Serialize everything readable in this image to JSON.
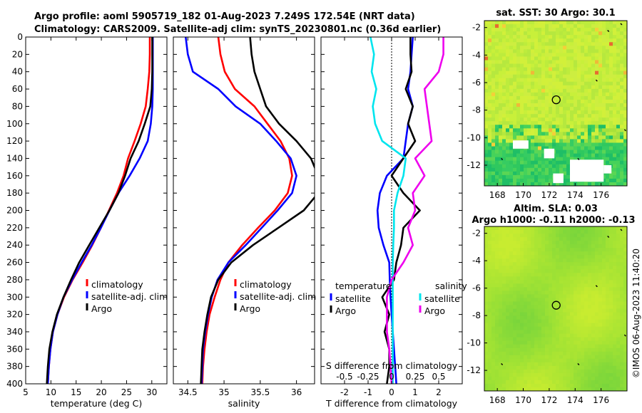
{
  "colors": {
    "climatology": "#ff0000",
    "satellite": "#0000ff",
    "argo": "#000000",
    "sat_salinity": "#00e5ee",
    "argo_salinity": "#ee00ee"
  },
  "header": {
    "line1": "Argo profile: aoml 5905719_182 01-Aug-2023 7.249S 172.54E (NRT data)",
    "line2": "Climatology: CARS2009. Satellite-adj clim: synTS_20230801.nc (0.36d earlier)"
  },
  "side_label": "©IMOS 06-Aug-2023 11:40:20",
  "chart_data": [
    {
      "type": "line",
      "id": "temperature",
      "xlabel": "temperature (deg C)",
      "xlim": [
        5,
        33
      ],
      "ylim": [
        0,
        400
      ],
      "xticks": [
        5,
        10,
        15,
        20,
        25,
        30
      ],
      "yticks": [
        0,
        20,
        40,
        60,
        80,
        100,
        120,
        140,
        160,
        180,
        200,
        220,
        240,
        260,
        280,
        300,
        320,
        340,
        360,
        380,
        400
      ],
      "legend": [
        "climatology",
        "satellite-adj. clim",
        "Argo"
      ],
      "series": [
        {
          "name": "climatology",
          "color": "#ff0000",
          "x": [
            29.6,
            29.6,
            29.5,
            29.2,
            28.8,
            27.8,
            26.6,
            25.3,
            24.4,
            23.1,
            21.5,
            19.9,
            18.2,
            16.3,
            14.3,
            12.6,
            11.3,
            10.4,
            9.9,
            9.6,
            9.4
          ],
          "y": [
            0,
            20,
            40,
            60,
            80,
            100,
            120,
            140,
            160,
            180,
            200,
            220,
            240,
            260,
            280,
            300,
            320,
            340,
            360,
            380,
            400
          ]
        },
        {
          "name": "satellite",
          "color": "#0000ff",
          "x": [
            30.2,
            30.2,
            30.2,
            30.2,
            30.1,
            29.8,
            29.2,
            27.6,
            25.6,
            23.4,
            21.6,
            19.9,
            18.1,
            16.1,
            14.2,
            12.5,
            11.3,
            10.4,
            9.9,
            9.6,
            9.4
          ],
          "y": [
            0,
            20,
            40,
            60,
            80,
            100,
            120,
            140,
            160,
            180,
            200,
            220,
            240,
            260,
            280,
            300,
            320,
            340,
            360,
            380,
            400
          ]
        },
        {
          "name": "Argo",
          "color": "#000000",
          "x": [
            30.1,
            30.1,
            30.1,
            30.0,
            29.7,
            28.6,
            27.4,
            25.8,
            24.7,
            23.4,
            21.6,
            19.6,
            17.6,
            15.6,
            14.0,
            12.5,
            11.2,
            10.3,
            9.7,
            9.4,
            9.2
          ],
          "y": [
            0,
            20,
            40,
            60,
            80,
            100,
            120,
            140,
            160,
            180,
            200,
            220,
            240,
            260,
            280,
            300,
            320,
            340,
            360,
            380,
            400
          ]
        }
      ]
    },
    {
      "type": "line",
      "id": "salinity",
      "xlabel": "salinity",
      "xlim": [
        34.3,
        36.25
      ],
      "ylim": [
        0,
        400
      ],
      "xticks": [
        34.5,
        35,
        35.5,
        36
      ],
      "legend": [
        "climatology",
        "satellite-adj. clim",
        "Argo"
      ],
      "series": [
        {
          "name": "climatology",
          "color": "#ff0000",
          "x": [
            34.92,
            34.95,
            35.01,
            35.15,
            35.42,
            35.6,
            35.78,
            35.9,
            35.94,
            35.88,
            35.7,
            35.47,
            35.25,
            35.06,
            34.95,
            34.87,
            34.8,
            34.76,
            34.73,
            34.71,
            34.7
          ],
          "y": [
            0,
            20,
            40,
            60,
            80,
            100,
            120,
            140,
            160,
            180,
            200,
            220,
            240,
            260,
            280,
            300,
            320,
            340,
            360,
            380,
            400
          ]
        },
        {
          "name": "satellite",
          "color": "#0000ff",
          "x": [
            34.47,
            34.5,
            34.57,
            34.92,
            35.16,
            35.5,
            35.72,
            35.92,
            36.0,
            35.94,
            35.74,
            35.52,
            35.3,
            35.06,
            34.91,
            34.83,
            34.78,
            34.74,
            34.71,
            34.7,
            34.69
          ],
          "y": [
            0,
            20,
            40,
            60,
            80,
            100,
            120,
            140,
            160,
            180,
            200,
            220,
            240,
            260,
            280,
            300,
            320,
            340,
            360,
            380,
            400
          ]
        },
        {
          "name": "Argo",
          "color": "#000000",
          "x": [
            35.36,
            35.38,
            35.42,
            35.5,
            35.58,
            35.76,
            36.0,
            36.2,
            36.3,
            36.3,
            36.1,
            35.75,
            35.4,
            35.1,
            34.92,
            34.82,
            34.77,
            34.73,
            34.7,
            34.69,
            34.68
          ],
          "y": [
            0,
            20,
            40,
            60,
            80,
            100,
            120,
            140,
            160,
            180,
            200,
            220,
            240,
            260,
            280,
            300,
            320,
            340,
            360,
            380,
            400
          ]
        }
      ]
    },
    {
      "type": "line",
      "id": "differences",
      "xlabel": "T difference from climatology",
      "top_axis_label": "S difference from climatology",
      "xlim": [
        -3,
        3
      ],
      "ylim": [
        0,
        400
      ],
      "xticks": [
        -2,
        -1,
        0,
        1,
        2
      ],
      "top_ticks": [
        -0.5,
        -0.25,
        0,
        0.25,
        0.5
      ],
      "legend_groups": [
        {
          "title": "temperature",
          "items": [
            "satellite",
            "Argo"
          ]
        },
        {
          "title": "salinity",
          "items": [
            "satellite",
            "Argo"
          ]
        }
      ],
      "series": [
        {
          "name": "temperature satellite",
          "color": "#0000ff",
          "x": [
            0.9,
            0.85,
            0.8,
            0.7,
            0.9,
            0.7,
            0.6,
            0.5,
            -0.2,
            -0.5,
            -0.6,
            -0.55,
            -0.35,
            -0.1,
            -0.08,
            -0.05,
            0,
            0.05,
            0.1,
            0.15,
            0.2
          ],
          "y": [
            0,
            20,
            40,
            60,
            80,
            100,
            120,
            140,
            160,
            180,
            200,
            220,
            240,
            260,
            280,
            300,
            320,
            340,
            360,
            380,
            400
          ]
        },
        {
          "name": "temperature Argo",
          "color": "#000000",
          "x": [
            0.8,
            0.8,
            0.85,
            0.6,
            0.9,
            0.7,
            1.0,
            0.5,
            0,
            0.5,
            1.2,
            0.5,
            0.4,
            0.2,
            0.1,
            -0.4,
            -0.1,
            -0.3,
            -0.1,
            -0.1,
            -0.2
          ],
          "y": [
            0,
            20,
            40,
            60,
            80,
            100,
            120,
            140,
            160,
            180,
            200,
            220,
            240,
            260,
            280,
            300,
            320,
            340,
            360,
            380,
            400
          ]
        },
        {
          "name": "salinity satellite",
          "color": "#00e5ee",
          "x": [
            -0.9,
            -0.75,
            -0.85,
            -0.65,
            -0.8,
            -0.7,
            -0.4,
            0.6,
            0.5,
            0.25,
            0.1,
            0.1,
            0.07,
            0.05,
            0.05,
            0.05,
            0.05,
            0.05,
            0.05,
            0.05,
            0.05
          ],
          "y": [
            0,
            20,
            40,
            60,
            80,
            100,
            120,
            140,
            160,
            180,
            200,
            220,
            240,
            260,
            280,
            300,
            320,
            340,
            360,
            380,
            400
          ]
        },
        {
          "name": "salinity Argo",
          "color": "#ee00ee",
          "x": [
            2.2,
            2.2,
            2.0,
            1.4,
            1.5,
            1.6,
            1.7,
            1.0,
            1.4,
            0.9,
            1.0,
            0.7,
            0.9,
            0.5,
            0,
            -0.2,
            -0.2,
            -0.2,
            -0.1,
            -0.05,
            0
          ],
          "y": [
            0,
            20,
            40,
            60,
            80,
            100,
            120,
            140,
            160,
            180,
            200,
            220,
            240,
            260,
            280,
            300,
            320,
            340,
            360,
            380,
            400
          ]
        }
      ]
    },
    {
      "type": "heatmap",
      "id": "sst_map",
      "title": "sat. SST: 30 Argo: 30.1",
      "xlim": [
        167,
        178
      ],
      "ylim": [
        -13.5,
        -1.5
      ],
      "xticks": [
        168,
        170,
        172,
        174,
        176
      ],
      "yticks": [
        -2,
        -4,
        -6,
        -8,
        -10,
        -12
      ],
      "profile_location": {
        "lon": 172.54,
        "lat": -7.249
      },
      "land_patches": [
        {
          "lon": [
            169.2,
            170.4
          ],
          "lat": [
            -10.8,
            -10.2
          ]
        },
        {
          "lon": [
            171.6,
            172.4
          ],
          "lat": [
            -11.5,
            -10.8
          ]
        },
        {
          "lon": [
            173.6,
            176.2
          ],
          "lat": [
            -13.2,
            -11.6
          ]
        },
        {
          "lon": [
            172.3,
            173.1
          ],
          "lat": [
            -13.3,
            -12.6
          ]
        },
        {
          "lon": [
            176.2,
            176.8
          ],
          "lat": [
            -12.6,
            -12.0
          ]
        }
      ]
    },
    {
      "type": "heatmap",
      "id": "sla_map",
      "title_lines": [
        "Altim. SLA: 0.03",
        "Argo h1000: -0.11 h2000: -0.13"
      ],
      "xlim": [
        167,
        178
      ],
      "ylim": [
        -13.5,
        -1.5
      ],
      "xticks": [
        168,
        170,
        172,
        174,
        176
      ],
      "yticks": [
        -2,
        -4,
        -6,
        -8,
        -10,
        -12
      ],
      "profile_location": {
        "lon": 172.54,
        "lat": -7.249
      }
    }
  ]
}
